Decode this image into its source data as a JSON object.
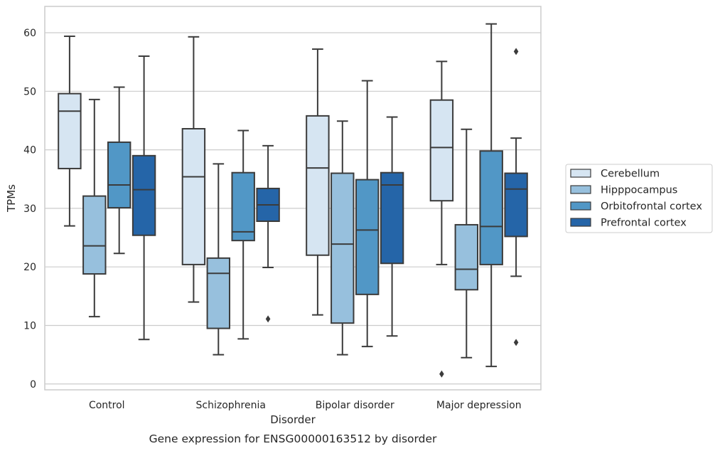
{
  "chart_data": {
    "type": "box",
    "xlabel": "Disorder",
    "ylabel": "TPMs",
    "caption": "Gene expression for ENSG00000163512 by disorder",
    "ylim": [
      -1,
      64.5
    ],
    "yticks": [
      0,
      10,
      20,
      30,
      40,
      50,
      60
    ],
    "grid": "horizontal",
    "legend_position": "right",
    "categories": [
      "Control",
      "Schizophrenia",
      "Bipolar disorder",
      "Major depression"
    ],
    "series": [
      {
        "name": "Cerebellum",
        "color": "#d6e5f2",
        "boxes": [
          {
            "whislo": 27.0,
            "q1": 36.8,
            "med": 46.6,
            "q3": 49.6,
            "whishi": 59.4,
            "fliers": []
          },
          {
            "whislo": 14.0,
            "q1": 20.4,
            "med": 35.4,
            "q3": 43.6,
            "whishi": 59.3,
            "fliers": []
          },
          {
            "whislo": 11.8,
            "q1": 22.0,
            "med": 36.9,
            "q3": 45.8,
            "whishi": 57.2,
            "fliers": []
          },
          {
            "whislo": 20.4,
            "q1": 31.3,
            "med": 40.4,
            "q3": 48.5,
            "whishi": 55.1,
            "fliers": [
              1.7
            ]
          }
        ]
      },
      {
        "name": "Hipppocampus",
        "color": "#97c0dd",
        "boxes": [
          {
            "whislo": 11.5,
            "q1": 18.8,
            "med": 23.6,
            "q3": 32.1,
            "whishi": 48.6,
            "fliers": []
          },
          {
            "whislo": 5.0,
            "q1": 9.5,
            "med": 18.9,
            "q3": 21.5,
            "whishi": 37.6,
            "fliers": []
          },
          {
            "whislo": 5.0,
            "q1": 10.4,
            "med": 23.9,
            "q3": 36.0,
            "whishi": 44.9,
            "fliers": []
          },
          {
            "whislo": 4.5,
            "q1": 16.1,
            "med": 19.6,
            "q3": 27.2,
            "whishi": 43.5,
            "fliers": []
          }
        ]
      },
      {
        "name": "Orbitofrontal cortex",
        "color": "#5197c6",
        "boxes": [
          {
            "whislo": 22.3,
            "q1": 30.1,
            "med": 34.0,
            "q3": 41.3,
            "whishi": 50.7,
            "fliers": []
          },
          {
            "whislo": 7.7,
            "q1": 24.5,
            "med": 26.0,
            "q3": 36.1,
            "whishi": 43.3,
            "fliers": []
          },
          {
            "whislo": 6.4,
            "q1": 15.3,
            "med": 26.3,
            "q3": 34.9,
            "whishi": 51.8,
            "fliers": []
          },
          {
            "whislo": 3.0,
            "q1": 20.4,
            "med": 26.9,
            "q3": 39.8,
            "whishi": 61.5,
            "fliers": []
          }
        ]
      },
      {
        "name": "Prefrontal cortex",
        "color": "#2565a8",
        "boxes": [
          {
            "whislo": 7.6,
            "q1": 25.4,
            "med": 33.2,
            "q3": 39.0,
            "whishi": 56.0,
            "fliers": []
          },
          {
            "whislo": 19.9,
            "q1": 27.8,
            "med": 30.6,
            "q3": 33.4,
            "whishi": 40.7,
            "fliers": [
              11.1
            ]
          },
          {
            "whislo": 8.2,
            "q1": 20.6,
            "med": 34.0,
            "q3": 36.1,
            "whishi": 45.6,
            "fliers": []
          },
          {
            "whislo": 18.4,
            "q1": 25.2,
            "med": 33.3,
            "q3": 36.0,
            "whishi": 42.0,
            "fliers": [
              56.8,
              7.1
            ]
          }
        ]
      }
    ]
  }
}
